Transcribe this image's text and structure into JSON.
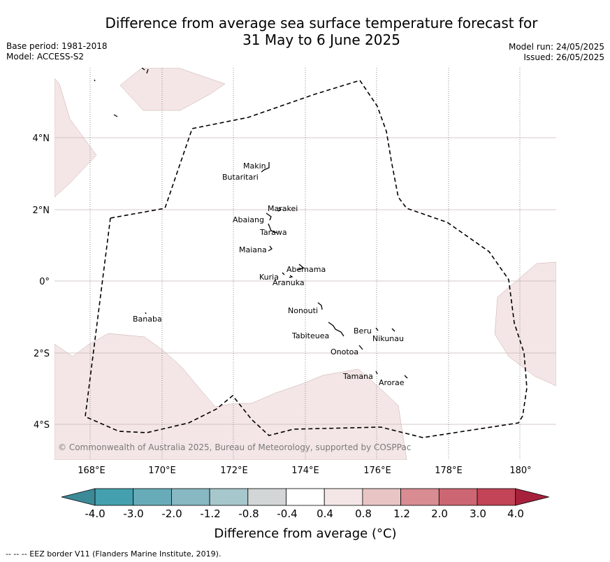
{
  "title": {
    "line1": "Difference from average sea surface temperature forecast for",
    "line2": "31 May to 6 June 2025"
  },
  "meta_left": {
    "base_period": "Base period: 1981-2018",
    "model": "Model: ACCESS-S2"
  },
  "meta_right": {
    "model_run": "Model run: 24/05/2025",
    "issued": "Issued: 26/05/2025"
  },
  "map": {
    "lat_labels": [
      "4°N",
      "2°N",
      "0°",
      "2°S",
      "4°S"
    ],
    "lon_labels": [
      "168°E",
      "170°E",
      "172°E",
      "174°E",
      "176°E",
      "178°E",
      "180°"
    ],
    "copyright": "© Commonwealth of Australia 2025, Bureau of Meteorology, supported by COSPPac",
    "places": [
      {
        "name": "Makin"
      },
      {
        "name": "Butaritari"
      },
      {
        "name": "Marakei"
      },
      {
        "name": "Abaiang"
      },
      {
        "name": "Tarawa"
      },
      {
        "name": "Maiana"
      },
      {
        "name": "Abemama"
      },
      {
        "name": "Kuria"
      },
      {
        "name": "Aranuka"
      },
      {
        "name": "Banaba"
      },
      {
        "name": "Nonouti"
      },
      {
        "name": "Tabiteuea"
      },
      {
        "name": "Beru"
      },
      {
        "name": "Nikunau"
      },
      {
        "name": "Onotoa"
      },
      {
        "name": "Tamana"
      },
      {
        "name": "Arorae"
      }
    ],
    "anomaly_fill_color": "#f4e6e6",
    "eez_border_style": "dashed"
  },
  "colorbar": {
    "ticks": [
      "-4.0",
      "-3.0",
      "-2.0",
      "-1.2",
      "-0.8",
      "-0.4",
      "0.4",
      "0.8",
      "1.2",
      "2.0",
      "3.0",
      "4.0"
    ],
    "colors": [
      "#3c8a98",
      "#44a0ae",
      "#67abb8",
      "#88b8c2",
      "#a6c8cc",
      "#d3d6d6",
      "#ffffff",
      "#f4e6e6",
      "#e8c5c4",
      "#d98c92",
      "#cc6673",
      "#c24456",
      "#a8213c"
    ],
    "label": "Difference from average (°C)"
  },
  "footer": "--  --  -- EEZ border V11 (Flanders Marine Institute, 2019)."
}
